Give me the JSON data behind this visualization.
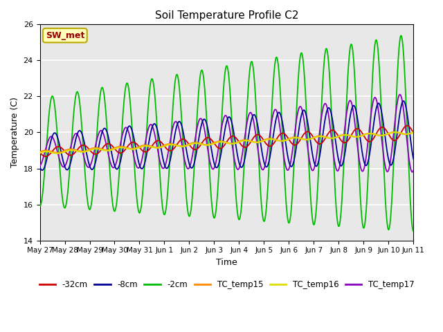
{
  "title": "Soil Temperature Profile C2",
  "xlabel": "Time",
  "ylabel": "Temperature (C)",
  "ylim": [
    14,
    26
  ],
  "yticks": [
    14,
    16,
    18,
    20,
    22,
    24,
    26
  ],
  "annotation_text": "SW_met",
  "annotation_facecolor": "#FFFFBB",
  "annotation_edgecolor": "#BBAA00",
  "annotation_textcolor": "#990000",
  "bg_color": "#E8E8E8",
  "legend_colors": {
    "-32cm": "#CC0000",
    "-8cm": "#000099",
    "-2cm": "#00BB00",
    "TC_temp15": "#FF8800",
    "TC_temp16": "#DDDD00",
    "TC_temp17": "#8800BB"
  },
  "xtick_labels": [
    "May 27",
    "May 28",
    "May 29",
    "May 30",
    "May 31",
    "Jun 1",
    "Jun 2",
    "Jun 3",
    "Jun 4",
    "Jun 5",
    "Jun 6",
    "Jun 7",
    "Jun 8",
    "Jun 9",
    "Jun 10",
    "Jun 11"
  ],
  "n_days": 15
}
